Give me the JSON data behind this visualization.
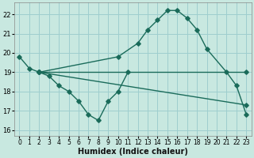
{
  "xlabel": "Humidex (Indice chaleur)",
  "bg_color": "#c8e8e0",
  "grid_color": "#9ecece",
  "line_color": "#1a6b5a",
  "xlim": [
    -0.5,
    23.5
  ],
  "ylim": [
    15.7,
    22.6
  ],
  "yticks": [
    16,
    17,
    18,
    19,
    20,
    21,
    22
  ],
  "xticks": [
    0,
    1,
    2,
    3,
    4,
    5,
    6,
    7,
    8,
    9,
    10,
    11,
    12,
    13,
    14,
    15,
    16,
    17,
    18,
    19,
    20,
    21,
    22,
    23
  ],
  "line1_x": [
    0,
    1,
    2,
    3,
    4,
    5,
    6,
    7,
    8,
    9,
    10,
    11
  ],
  "line1_y": [
    19.8,
    19.2,
    19.0,
    18.8,
    18.3,
    18.0,
    17.5,
    16.8,
    16.5,
    17.5,
    18.0,
    19.0
  ],
  "line2_x": [
    2,
    10,
    12,
    13,
    14,
    15,
    16,
    17,
    18,
    19,
    21,
    22,
    23
  ],
  "line2_y": [
    19.0,
    19.8,
    20.5,
    21.2,
    21.7,
    22.2,
    22.2,
    21.8,
    21.2,
    20.2,
    19.0,
    18.3,
    16.8
  ],
  "line3_x": [
    2,
    23
  ],
  "line3_y": [
    19.0,
    19.0
  ],
  "line4_x": [
    2,
    23
  ],
  "line4_y": [
    19.0,
    17.3
  ]
}
